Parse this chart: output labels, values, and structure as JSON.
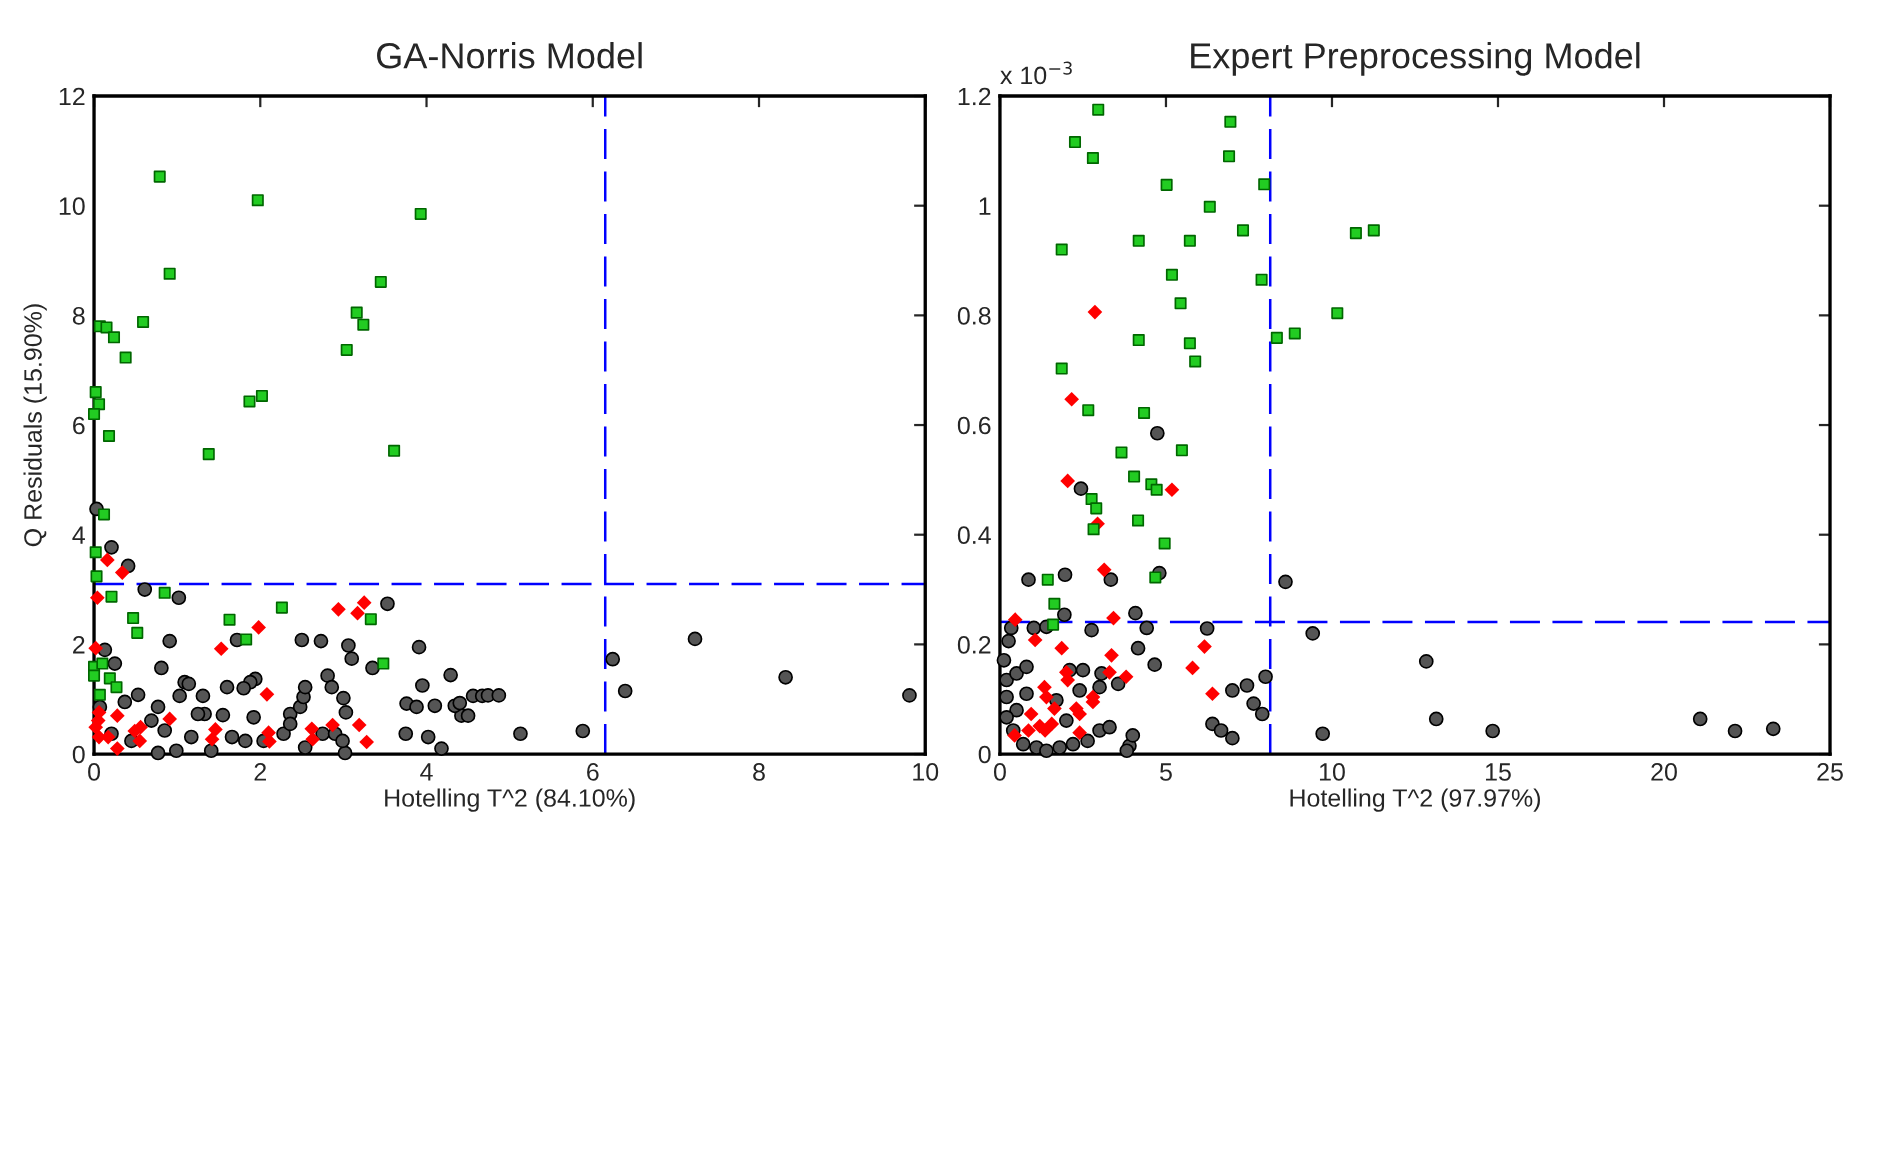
{
  "chart_data": [
    {
      "type": "scatter",
      "title": "GA-Norris Model",
      "xlabel": "Hotelling T^2 (84.10%)",
      "ylabel": "Q Residuals (15.90%)",
      "xlim": [
        0,
        10
      ],
      "ylim": [
        0,
        12
      ],
      "xticks": [
        0,
        2,
        4,
        6,
        8,
        10
      ],
      "yticks": [
        0,
        2,
        4,
        6,
        8,
        10,
        12
      ],
      "ref_lines": [
        {
          "axis": "x",
          "value": 6.15,
          "color": "#0000ff",
          "line_style": "dashed"
        },
        {
          "axis": "y",
          "value": 3.1,
          "color": "#0000ff",
          "line_style": "dashed"
        }
      ],
      "series": [
        {
          "color": "#555555",
          "marker": "circle",
          "x": [
            0.03,
            0.21,
            0.41,
            0.61,
            1.02,
            0.91,
            0.81,
            0.25,
            0.13,
            3.53,
            3.35,
            2.5,
            2.73,
            3.06,
            3.1,
            2.81,
            2.86,
            3.0,
            3.03,
            1.72,
            1.94,
            1.88,
            1.6,
            1.8,
            1.09,
            1.14,
            1.03,
            1.31,
            1.33,
            1.25,
            1.55,
            1.92,
            2.36,
            2.48,
            2.52,
            2.54,
            3.91,
            3.95,
            4.29,
            3.76,
            3.88,
            4.1,
            4.42,
            4.34,
            4.56,
            4.67,
            3.75,
            4.02,
            4.18,
            3.02,
            2.54,
            2.04,
            1.82,
            1.41,
            0.99,
            0.77,
            0.45,
            0.69,
            0.77,
            0.53,
            0.37,
            0.07,
            0.21,
            0.85,
            1.17,
            1.66,
            2.28,
            2.36,
            2.75,
            2.9,
            2.99,
            7.23,
            6.24,
            6.39,
            8.32,
            9.81,
            5.88,
            5.13,
            4.74,
            4.87,
            4.5,
            4.4
          ],
          "values": [
            4.47,
            3.77,
            3.43,
            3.0,
            2.85,
            2.06,
            1.57,
            1.65,
            1.9,
            2.74,
            1.57,
            2.08,
            2.06,
            1.98,
            1.74,
            1.43,
            1.22,
            1.02,
            0.76,
            2.08,
            1.37,
            1.31,
            1.22,
            1.2,
            1.31,
            1.28,
            1.06,
            1.06,
            0.73,
            0.73,
            0.71,
            0.67,
            0.73,
            0.86,
            1.04,
            1.22,
            1.95,
            1.25,
            1.44,
            0.92,
            0.86,
            0.88,
            0.7,
            0.88,
            1.06,
            1.06,
            0.37,
            0.31,
            0.1,
            0.02,
            0.12,
            0.24,
            0.24,
            0.06,
            0.06,
            0.02,
            0.24,
            0.61,
            0.86,
            1.08,
            0.95,
            0.86,
            0.37,
            0.43,
            0.31,
            0.31,
            0.37,
            0.55,
            0.37,
            0.37,
            0.24,
            2.1,
            1.73,
            1.15,
            1.4,
            1.07,
            0.42,
            0.37,
            1.07,
            1.07,
            0.7,
            0.93
          ]
        },
        {
          "color": "#ff0000",
          "marker": "diamond",
          "x": [
            0.16,
            0.34,
            0.04,
            1.53,
            1.98,
            2.94,
            3.17,
            3.25,
            0.02,
            2.08,
            0.06,
            0.28,
            0.05,
            0.17,
            0.28,
            0.56,
            0.49,
            0.55,
            0.91,
            1.46,
            1.42,
            2.1,
            2.11,
            2.62,
            2.63,
            2.87,
            3.19,
            3.28,
            0.02,
            0.06
          ],
          "values": [
            3.54,
            3.31,
            2.85,
            1.92,
            2.31,
            2.64,
            2.57,
            2.76,
            1.93,
            1.09,
            0.76,
            0.7,
            0.61,
            0.31,
            0.1,
            0.49,
            0.42,
            0.24,
            0.64,
            0.45,
            0.27,
            0.39,
            0.23,
            0.46,
            0.27,
            0.53,
            0.53,
            0.22,
            0.49,
            0.31
          ]
        },
        {
          "color": "#22cc22",
          "marker": "square",
          "x": [
            0.79,
            1.97,
            3.93,
            0.91,
            3.45,
            3.16,
            3.24,
            3.04,
            0.59,
            0.07,
            0.15,
            0.24,
            0.38,
            0.02,
            0.06,
            0.0,
            0.18,
            1.38,
            1.87,
            2.02,
            3.61,
            0.12,
            0.02,
            0.03,
            0.21,
            0.85,
            0.47,
            0.52,
            1.63,
            1.83,
            2.26,
            3.33,
            3.48,
            0.0,
            0.1,
            0.0,
            0.19,
            0.27,
            0.07
          ],
          "values": [
            10.53,
            10.1,
            9.85,
            8.76,
            8.61,
            8.05,
            7.83,
            7.37,
            7.88,
            7.8,
            7.78,
            7.6,
            7.23,
            6.6,
            6.38,
            6.2,
            5.8,
            5.47,
            6.43,
            6.53,
            5.53,
            4.37,
            3.68,
            3.24,
            2.87,
            2.94,
            2.48,
            2.21,
            2.45,
            2.09,
            2.67,
            2.46,
            1.65,
            1.59,
            1.65,
            1.43,
            1.38,
            1.22,
            1.08
          ]
        }
      ]
    },
    {
      "type": "scatter",
      "title": "Expert Preprocessing Model",
      "xlabel": "Hotelling T^2 (97.97%)",
      "annotations": [
        "x 10$^{−3}$"
      ],
      "xlim": [
        0,
        25
      ],
      "ylim": [
        0,
        1.2
      ],
      "xticks": [
        0,
        5,
        10,
        15,
        20,
        25
      ],
      "yticks": [
        0,
        0.2,
        0.4,
        0.6,
        0.8,
        1,
        1.2
      ],
      "ref_lines": [
        {
          "axis": "x",
          "value": 8.14,
          "color": "#0000ff",
          "line_style": "dashed"
        },
        {
          "axis": "y",
          "value": 0.241,
          "color": "#0000ff",
          "line_style": "dashed"
        }
      ],
      "series": [
        {
          "color": "#555555",
          "marker": "circle",
          "x": [
            4.74,
            2.44,
            0.86,
            1.96,
            3.34,
            4.8,
            1.94,
            4.08,
            4.16,
            4.66,
            4.42,
            6.24,
            8.6,
            9.42,
            8.0,
            7.44,
            7.0,
            7.64,
            7.9,
            6.4,
            6.66,
            7.0,
            9.72,
            0.12,
            0.26,
            0.34,
            1.02,
            1.4,
            2.76,
            0.2,
            0.5,
            0.8,
            0.2,
            0.5,
            0.8,
            0.2,
            0.4,
            0.7,
            1.1,
            1.4,
            1.8,
            2.2,
            2.64,
            3.0,
            3.3,
            2.4,
            3.0,
            3.56,
            2.5,
            3.06,
            2.1,
            3.9,
            4.0,
            3.82,
            1.7,
            2.0,
            12.84,
            13.14,
            14.84,
            21.09,
            22.14,
            23.29
          ],
          "values": [
            0.585,
            0.484,
            0.318,
            0.327,
            0.318,
            0.33,
            0.254,
            0.257,
            0.193,
            0.163,
            0.23,
            0.229,
            0.314,
            0.22,
            0.141,
            0.125,
            0.116,
            0.092,
            0.073,
            0.055,
            0.043,
            0.029,
            0.037,
            0.171,
            0.206,
            0.23,
            0.23,
            0.232,
            0.226,
            0.135,
            0.147,
            0.159,
            0.104,
            0.08,
            0.11,
            0.067,
            0.043,
            0.018,
            0.012,
            0.006,
            0.012,
            0.018,
            0.024,
            0.043,
            0.049,
            0.116,
            0.122,
            0.128,
            0.153,
            0.147,
            0.153,
            0.015,
            0.034,
            0.006,
            0.098,
            0.061,
            0.169,
            0.064,
            0.042,
            0.064,
            0.042,
            0.046
          ]
        },
        {
          "color": "#ff0000",
          "marker": "diamond",
          "x": [
            2.86,
            2.16,
            2.04,
            5.18,
            2.94,
            3.14,
            3.42,
            0.46,
            1.06,
            1.86,
            3.36,
            5.8,
            6.16,
            6.4,
            2.0,
            2.04,
            3.8,
            3.3,
            1.34,
            1.4,
            1.64,
            0.94,
            2.3,
            2.4,
            2.8,
            2.8,
            1.2,
            1.36,
            0.44,
            0.86,
            2.4,
            1.56
          ],
          "values": [
            0.806,
            0.647,
            0.498,
            0.482,
            0.42,
            0.336,
            0.248,
            0.245,
            0.208,
            0.193,
            0.18,
            0.157,
            0.196,
            0.11,
            0.149,
            0.135,
            0.141,
            0.149,
            0.122,
            0.104,
            0.083,
            0.073,
            0.083,
            0.073,
            0.104,
            0.095,
            0.051,
            0.043,
            0.034,
            0.043,
            0.039,
            0.055
          ]
        },
        {
          "color": "#22cc22",
          "marker": "square",
          "x": [
            2.96,
            6.94,
            2.26,
            2.8,
            6.9,
            5.02,
            7.96,
            6.32,
            1.86,
            4.18,
            5.72,
            7.32,
            10.72,
            11.26,
            5.18,
            7.88,
            5.44,
            10.16,
            4.18,
            5.72,
            8.34,
            8.88,
            5.88,
            1.86,
            2.66,
            4.34,
            3.66,
            5.48,
            4.04,
            4.56,
            4.72,
            2.76,
            2.9,
            2.82,
            4.16,
            4.96,
            4.68,
            1.44,
            1.64,
            1.6
          ],
          "values": [
            1.175,
            1.153,
            1.116,
            1.087,
            1.09,
            1.038,
            1.039,
            0.998,
            0.92,
            0.936,
            0.936,
            0.955,
            0.95,
            0.955,
            0.874,
            0.865,
            0.822,
            0.804,
            0.755,
            0.749,
            0.759,
            0.767,
            0.716,
            0.703,
            0.627,
            0.622,
            0.55,
            0.554,
            0.506,
            0.492,
            0.482,
            0.465,
            0.448,
            0.41,
            0.426,
            0.384,
            0.322,
            0.318,
            0.274,
            0.236
          ]
        }
      ]
    }
  ]
}
